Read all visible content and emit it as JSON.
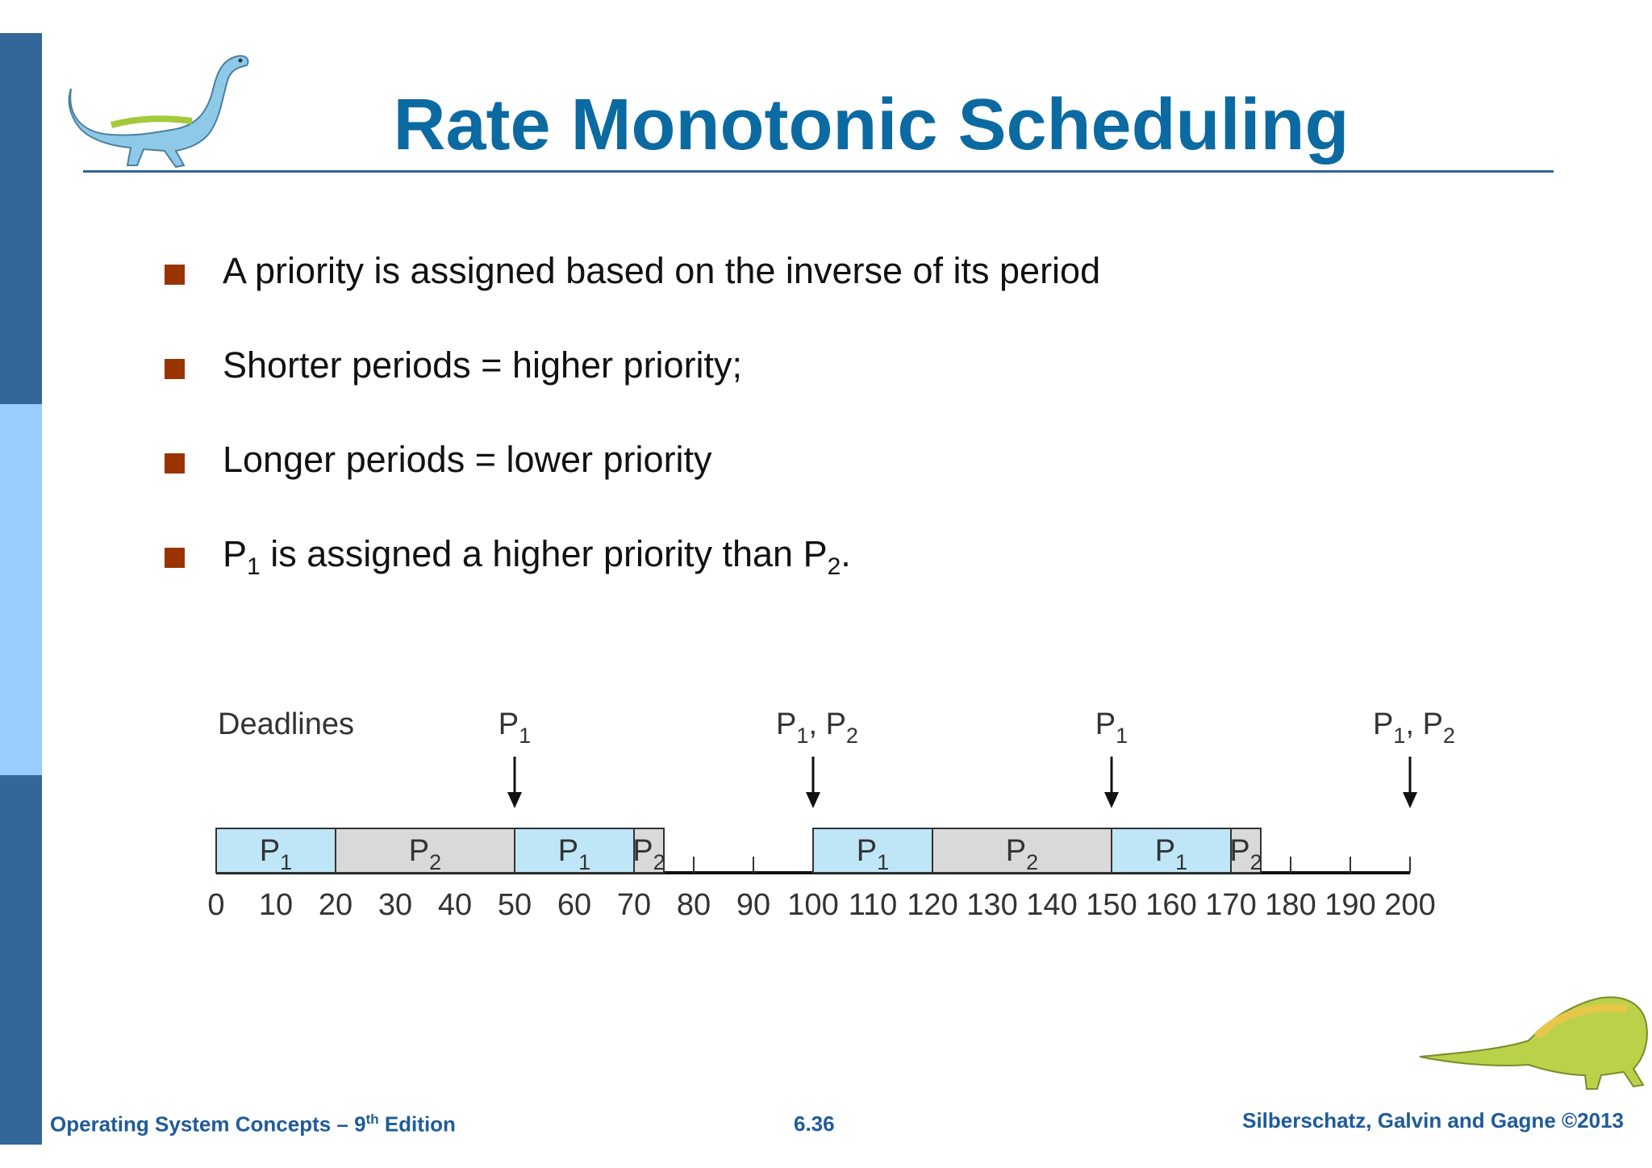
{
  "slide": {
    "title": "Rate Monotonic Scheduling",
    "bullets": [
      "A priority is assigned based on the inverse of its period",
      "Shorter periods = higher priority;",
      "Longer periods = lower priority",
      {
        "pre": "P",
        "sub1": "1",
        "mid": " is assigned a higher priority than P",
        "sub2": "2",
        "post": "."
      }
    ],
    "footer": {
      "book": "Operating System Concepts – 9",
      "book_sup": "th",
      "book_tail": " Edition",
      "page": "6.36",
      "copyright": "Silberschatz, Galvin and Gagne ©2013"
    }
  },
  "chart_data": {
    "type": "gantt",
    "deadlines_label": "Deadlines",
    "deadlines": [
      {
        "t": 50,
        "label": "P",
        "sub": "1"
      },
      {
        "t": 100,
        "label": "P",
        "sub": "1",
        "label2": "P",
        "sub2": "2"
      },
      {
        "t": 150,
        "label": "P",
        "sub": "1"
      },
      {
        "t": 200,
        "label": "P",
        "sub": "1",
        "label2": "P",
        "sub2": "2"
      }
    ],
    "blocks": [
      {
        "start": 0,
        "end": 20,
        "process": "P",
        "sub": "1"
      },
      {
        "start": 20,
        "end": 50,
        "process": "P",
        "sub": "2"
      },
      {
        "start": 50,
        "end": 70,
        "process": "P",
        "sub": "1"
      },
      {
        "start": 70,
        "end": 75,
        "process": "P",
        "sub": "2"
      },
      {
        "start": 100,
        "end": 120,
        "process": "P",
        "sub": "1"
      },
      {
        "start": 120,
        "end": 150,
        "process": "P",
        "sub": "2"
      },
      {
        "start": 150,
        "end": 170,
        "process": "P",
        "sub": "1"
      },
      {
        "start": 170,
        "end": 175,
        "process": "P",
        "sub": "2"
      }
    ],
    "x_ticks": [
      0,
      10,
      20,
      30,
      40,
      50,
      60,
      70,
      80,
      90,
      100,
      110,
      120,
      130,
      140,
      150,
      160,
      170,
      180,
      190,
      200
    ],
    "xlim": [
      0,
      200
    ],
    "colors": {
      "P1": "#bfe6f7",
      "P2": "#d9d9d9"
    }
  }
}
